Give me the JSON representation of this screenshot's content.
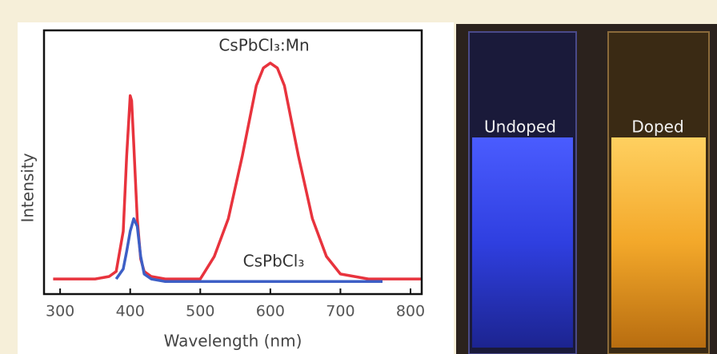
{
  "chart_data": {
    "type": "line",
    "xlabel": "Wavelength (nm)",
    "ylabel": "Intensity",
    "annotations": [
      "CsPbCl₃:Mn",
      "CsPbCl₃"
    ],
    "x": [
      290,
      320,
      350,
      370,
      380,
      390,
      395,
      400,
      402,
      405,
      410,
      415,
      420,
      430,
      450,
      480,
      500,
      520,
      540,
      560,
      580,
      590,
      600,
      610,
      620,
      640,
      660,
      680,
      700,
      720,
      740,
      760,
      790,
      816
    ],
    "series": [
      {
        "name": "CsPbCl₃:Mn",
        "color": "#e8333d",
        "values": [
          0.01,
          0.01,
          0.01,
          0.02,
          0.04,
          0.2,
          0.5,
          0.74,
          0.72,
          0.55,
          0.25,
          0.09,
          0.04,
          0.02,
          0.01,
          0.01,
          0.01,
          0.1,
          0.25,
          0.5,
          0.78,
          0.85,
          0.87,
          0.85,
          0.78,
          0.5,
          0.25,
          0.1,
          0.03,
          0.02,
          0.01,
          0.01,
          0.01,
          0.01
        ]
      },
      {
        "name": "CsPbCl₃",
        "color": "#3d5fc6",
        "values": [
          null,
          null,
          null,
          null,
          0.01,
          0.05,
          0.12,
          0.2,
          0.22,
          0.25,
          0.22,
          0.1,
          0.03,
          0.01,
          0,
          0,
          0,
          0,
          0,
          0,
          0,
          0,
          0,
          0,
          0,
          0,
          0,
          0,
          0,
          0,
          0,
          0,
          null,
          null
        ]
      }
    ],
    "xlim": [
      277,
      816
    ],
    "ylim": [
      -0.05,
      1
    ],
    "xticks": [
      300,
      400,
      500,
      600,
      700,
      800
    ]
  },
  "image": {
    "labels": [
      "Undoped",
      "Doped"
    ]
  }
}
